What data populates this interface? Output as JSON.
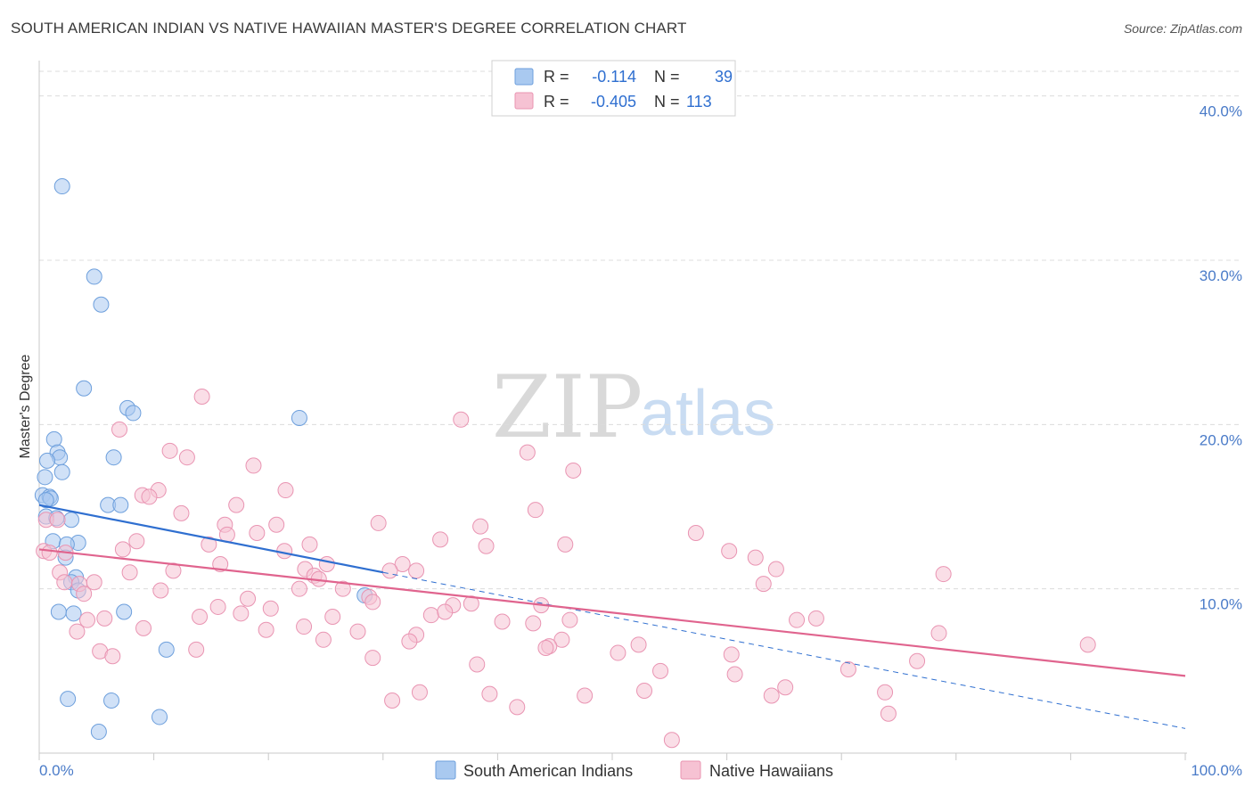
{
  "title": "SOUTH AMERICAN INDIAN VS NATIVE HAWAIIAN MASTER'S DEGREE CORRELATION CHART",
  "source": "Source: ZipAtlas.com",
  "watermark": {
    "zip": "ZIP",
    "atlas": "atlas"
  },
  "colors": {
    "blue_fill": "#a9c9f0",
    "blue_stroke": "#6d9fdc",
    "blue_line": "#2f6fd0",
    "pink_fill": "#f6c2d3",
    "pink_stroke": "#e994b2",
    "pink_line": "#e0648e",
    "tick_label": "#4a7bc8",
    "grid": "#dcdcdc"
  },
  "legend": {
    "rows": [
      {
        "r_label": "R =",
        "r_value": "-0.114",
        "n_label": "N =",
        "n_value": "39"
      },
      {
        "r_label": "R =",
        "r_value": "-0.405",
        "n_label": "N =",
        "n_value": "113"
      }
    ]
  },
  "bottom_legend": [
    "South American Indians",
    "Native Hawaiians"
  ],
  "chart_data": {
    "type": "scatter",
    "title": "SOUTH AMERICAN INDIAN VS NATIVE HAWAIIAN MASTER'S DEGREE CORRELATION CHART",
    "xlabel": "",
    "ylabel": "Master's Degree",
    "xlim": [
      0,
      100
    ],
    "ylim": [
      0,
      41.5
    ],
    "x_tick_labels": [
      "0.0%",
      "100.0%"
    ],
    "y_ticks": [
      10,
      20,
      30,
      40
    ],
    "y_tick_labels": [
      "10.0%",
      "20.0%",
      "30.0%",
      "40.0%"
    ],
    "x_minor_ticks": [
      0,
      10,
      20,
      30,
      40,
      50,
      60,
      70,
      80,
      90,
      100
    ],
    "series": [
      {
        "name": "South American Indians",
        "color": "blue",
        "r": -0.114,
        "n": 39,
        "trend_solid": [
          [
            0,
            15.1
          ],
          [
            30,
            11.0
          ]
        ],
        "trend_dashed": [
          [
            30,
            11.0
          ],
          [
            100,
            1.5
          ]
        ],
        "points": [
          [
            2.0,
            34.5
          ],
          [
            4.8,
            29.0
          ],
          [
            5.4,
            27.3
          ],
          [
            3.9,
            22.2
          ],
          [
            7.7,
            21.0
          ],
          [
            8.2,
            20.7
          ],
          [
            22.7,
            20.4
          ],
          [
            1.3,
            19.1
          ],
          [
            1.6,
            18.3
          ],
          [
            1.8,
            18.0
          ],
          [
            6.5,
            18.0
          ],
          [
            0.7,
            17.8
          ],
          [
            2.0,
            17.1
          ],
          [
            0.5,
            16.8
          ],
          [
            0.3,
            15.7
          ],
          [
            0.9,
            15.6
          ],
          [
            1.0,
            15.5
          ],
          [
            0.6,
            15.4
          ],
          [
            6.0,
            15.1
          ],
          [
            7.1,
            15.1
          ],
          [
            0.6,
            14.4
          ],
          [
            1.5,
            14.3
          ],
          [
            2.8,
            14.2
          ],
          [
            1.2,
            12.9
          ],
          [
            3.4,
            12.8
          ],
          [
            2.4,
            12.7
          ],
          [
            2.3,
            11.9
          ],
          [
            3.2,
            10.7
          ],
          [
            2.8,
            10.4
          ],
          [
            3.4,
            9.9
          ],
          [
            28.4,
            9.6
          ],
          [
            1.7,
            8.6
          ],
          [
            3.0,
            8.5
          ],
          [
            7.4,
            8.6
          ],
          [
            11.1,
            6.3
          ],
          [
            2.5,
            3.3
          ],
          [
            6.3,
            3.2
          ],
          [
            10.5,
            2.2
          ],
          [
            5.2,
            1.3
          ]
        ]
      },
      {
        "name": "Native Hawaiians",
        "color": "pink",
        "r": -0.405,
        "n": 113,
        "trend_solid": [
          [
            0,
            12.4
          ],
          [
            100,
            4.7
          ]
        ],
        "points": [
          [
            14.2,
            21.7
          ],
          [
            36.8,
            20.3
          ],
          [
            7.0,
            19.7
          ],
          [
            11.4,
            18.4
          ],
          [
            42.6,
            18.3
          ],
          [
            12.9,
            18.0
          ],
          [
            18.7,
            17.5
          ],
          [
            46.6,
            17.2
          ],
          [
            10.4,
            16.0
          ],
          [
            21.5,
            16.0
          ],
          [
            9.0,
            15.7
          ],
          [
            9.6,
            15.6
          ],
          [
            17.2,
            15.1
          ],
          [
            43.3,
            14.8
          ],
          [
            12.4,
            14.6
          ],
          [
            0.6,
            14.2
          ],
          [
            1.6,
            14.2
          ],
          [
            16.2,
            13.9
          ],
          [
            20.7,
            13.9
          ],
          [
            29.6,
            14.0
          ],
          [
            38.5,
            13.8
          ],
          [
            16.4,
            13.3
          ],
          [
            19.0,
            13.4
          ],
          [
            57.3,
            13.4
          ],
          [
            35.0,
            13.0
          ],
          [
            8.5,
            12.9
          ],
          [
            14.8,
            12.7
          ],
          [
            23.6,
            12.7
          ],
          [
            39.0,
            12.6
          ],
          [
            45.9,
            12.7
          ],
          [
            0.4,
            12.3
          ],
          [
            2.3,
            12.2
          ],
          [
            7.3,
            12.4
          ],
          [
            21.4,
            12.3
          ],
          [
            60.2,
            12.3
          ],
          [
            0.9,
            12.2
          ],
          [
            62.5,
            11.9
          ],
          [
            15.8,
            11.5
          ],
          [
            25.1,
            11.5
          ],
          [
            31.7,
            11.5
          ],
          [
            23.2,
            11.2
          ],
          [
            64.3,
            11.2
          ],
          [
            32.9,
            11.1
          ],
          [
            1.8,
            11.0
          ],
          [
            7.9,
            11.0
          ],
          [
            11.7,
            11.1
          ],
          [
            30.6,
            11.1
          ],
          [
            24.0,
            10.8
          ],
          [
            78.9,
            10.9
          ],
          [
            24.4,
            10.6
          ],
          [
            2.2,
            10.4
          ],
          [
            4.8,
            10.4
          ],
          [
            3.5,
            10.3
          ],
          [
            63.2,
            10.3
          ],
          [
            22.7,
            10.0
          ],
          [
            26.5,
            10.0
          ],
          [
            10.6,
            9.9
          ],
          [
            3.9,
            9.7
          ],
          [
            28.8,
            9.5
          ],
          [
            18.2,
            9.4
          ],
          [
            36.1,
            9.0
          ],
          [
            29.1,
            9.2
          ],
          [
            37.7,
            9.1
          ],
          [
            43.8,
            9.0
          ],
          [
            15.6,
            8.9
          ],
          [
            20.2,
            8.8
          ],
          [
            17.6,
            8.5
          ],
          [
            34.2,
            8.4
          ],
          [
            35.4,
            8.6
          ],
          [
            14.0,
            8.3
          ],
          [
            25.6,
            8.3
          ],
          [
            5.7,
            8.2
          ],
          [
            4.2,
            8.1
          ],
          [
            46.3,
            8.1
          ],
          [
            66.1,
            8.1
          ],
          [
            67.8,
            8.2
          ],
          [
            40.4,
            8.0
          ],
          [
            43.1,
            7.9
          ],
          [
            23.1,
            7.7
          ],
          [
            9.1,
            7.6
          ],
          [
            27.8,
            7.4
          ],
          [
            32.9,
            7.2
          ],
          [
            19.8,
            7.5
          ],
          [
            3.3,
            7.4
          ],
          [
            78.5,
            7.3
          ],
          [
            45.6,
            6.9
          ],
          [
            24.8,
            6.9
          ],
          [
            32.3,
            6.8
          ],
          [
            44.5,
            6.5
          ],
          [
            44.2,
            6.4
          ],
          [
            52.3,
            6.6
          ],
          [
            91.5,
            6.6
          ],
          [
            13.7,
            6.3
          ],
          [
            5.3,
            6.2
          ],
          [
            50.5,
            6.1
          ],
          [
            60.4,
            6.0
          ],
          [
            29.1,
            5.8
          ],
          [
            6.4,
            5.9
          ],
          [
            76.6,
            5.6
          ],
          [
            38.2,
            5.4
          ],
          [
            70.6,
            5.1
          ],
          [
            54.2,
            5.0
          ],
          [
            60.7,
            4.8
          ],
          [
            65.1,
            4.0
          ],
          [
            52.8,
            3.8
          ],
          [
            33.2,
            3.7
          ],
          [
            39.3,
            3.6
          ],
          [
            63.9,
            3.5
          ],
          [
            47.6,
            3.5
          ],
          [
            73.8,
            3.7
          ],
          [
            30.8,
            3.2
          ],
          [
            41.7,
            2.8
          ],
          [
            74.1,
            2.4
          ],
          [
            55.2,
            0.8
          ]
        ]
      }
    ]
  }
}
